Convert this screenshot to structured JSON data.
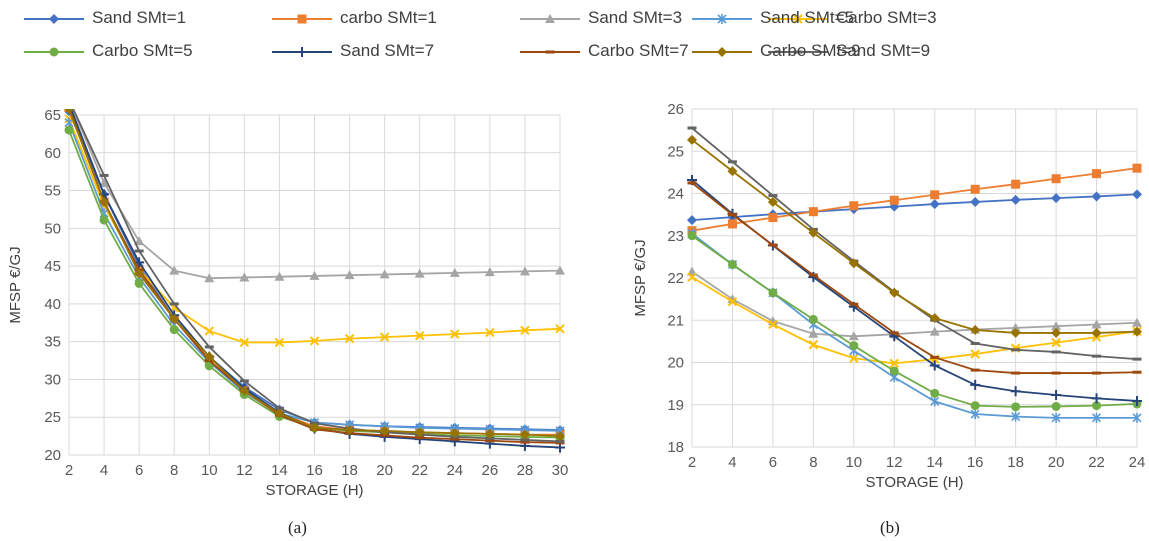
{
  "legend": [
    {
      "name": "Sand SMt=1",
      "color": "#4472C4",
      "marker": "diamond"
    },
    {
      "name": "carbo SMt=1",
      "color": "#ED7D31",
      "marker": "square"
    },
    {
      "name": "Sand SMt=3",
      "color": "#A5A5A5",
      "marker": "triangle"
    },
    {
      "name": "Carbo SMt=3",
      "color": "#FFC000",
      "marker": "x"
    },
    {
      "name": "Sand SMt=5",
      "color": "#5B9BD5",
      "marker": "star"
    },
    {
      "name": "Carbo SMt=5",
      "color": "#70AD47",
      "marker": "circle"
    },
    {
      "name": "Sand SMt=7",
      "color": "#264478",
      "marker": "plus"
    },
    {
      "name": "Carbo SMt=7",
      "color": "#9E480E",
      "marker": "dash"
    },
    {
      "name": "Sand SMt=9",
      "color": "#636363",
      "marker": "dash"
    },
    {
      "name": "Carbo SMt=9",
      "color": "#997300",
      "marker": "diamond"
    }
  ],
  "chart_data": [
    {
      "type": "line",
      "caption": "(a)",
      "xlabel": "STORAGE (H)",
      "ylabel": "MFSP €/GJ",
      "x": [
        2,
        4,
        6,
        8,
        10,
        12,
        14,
        16,
        18,
        20,
        22,
        24,
        26,
        28,
        30
      ],
      "xlim": [
        2,
        30
      ],
      "ylim": [
        20,
        65
      ],
      "yticks": [
        20,
        25,
        30,
        35,
        40,
        45,
        50,
        55,
        60,
        65
      ],
      "grid": true,
      "series": [
        {
          "name": "Sand SMt=1",
          "values": [
            65.5,
            54.5,
            45.0,
            38.0,
            33.0,
            29.0,
            26.0,
            24.3,
            24.0,
            23.8,
            23.7,
            23.6,
            23.5,
            23.4,
            23.3
          ]
        },
        {
          "name": "carbo SMt=1",
          "values": [
            66.0,
            53.5,
            44.5,
            38.0,
            32.5,
            28.5,
            25.5,
            23.8,
            23.3,
            23.1,
            23.0,
            22.9,
            22.8,
            22.7,
            22.7
          ]
        },
        {
          "name": "Sand SMt=3",
          "values": [
            67.0,
            56.0,
            48.3,
            44.4,
            43.4,
            43.5,
            43.6,
            43.7,
            43.8,
            43.9,
            44.0,
            44.1,
            44.2,
            44.3,
            44.4
          ]
        },
        {
          "name": "Carbo SMt=3",
          "values": [
            64.5,
            53.0,
            44.5,
            39.5,
            36.4,
            34.9,
            34.9,
            35.1,
            35.4,
            35.6,
            35.8,
            36.0,
            36.2,
            36.5,
            36.7
          ]
        },
        {
          "name": "Sand SMt=5",
          "values": [
            64.0,
            52.0,
            43.5,
            37.2,
            32.3,
            28.3,
            25.5,
            24.3,
            24.0,
            23.8,
            23.6,
            23.5,
            23.4,
            23.3,
            23.2
          ]
        },
        {
          "name": "Carbo SMt=5",
          "values": [
            63.0,
            51.1,
            42.7,
            36.6,
            31.8,
            28.0,
            25.1,
            23.6,
            23.2,
            23.0,
            22.8,
            22.6,
            22.5,
            22.4,
            22.3
          ]
        },
        {
          "name": "Sand SMt=7",
          "values": [
            66.5,
            54.5,
            45.5,
            38.5,
            33.0,
            28.8,
            25.6,
            23.5,
            22.8,
            22.4,
            22.1,
            21.8,
            21.5,
            21.2,
            21.0
          ]
        },
        {
          "name": "Carbo SMt=7",
          "values": [
            66.0,
            53.5,
            44.5,
            38.0,
            32.5,
            28.5,
            25.3,
            23.4,
            22.9,
            22.6,
            22.3,
            22.1,
            21.9,
            21.7,
            21.6
          ]
        },
        {
          "name": "Sand SMt=9",
          "values": [
            67.0,
            57.0,
            47.0,
            40.0,
            34.3,
            29.8,
            26.2,
            24.2,
            23.5,
            23.0,
            22.7,
            22.4,
            22.2,
            22.0,
            21.8
          ]
        },
        {
          "name": "Carbo SMt=9",
          "values": [
            65.8,
            53.5,
            44.0,
            38.0,
            33.0,
            28.5,
            25.5,
            23.6,
            23.3,
            23.2,
            23.0,
            22.9,
            22.8,
            22.7,
            22.5
          ]
        }
      ]
    },
    {
      "type": "line",
      "caption": "(b)",
      "xlabel": "STORAGE (H)",
      "ylabel": "MFSP €/GJ",
      "x": [
        2,
        4,
        6,
        8,
        10,
        12,
        14,
        16,
        18,
        20,
        22,
        24
      ],
      "xlim": [
        2,
        24
      ],
      "ylim": [
        18,
        26
      ],
      "yticks": [
        18,
        19,
        20,
        21,
        22,
        23,
        24,
        25,
        26
      ],
      "grid": true,
      "series": [
        {
          "name": "Sand SMt=1",
          "values": [
            23.37,
            23.44,
            23.51,
            23.57,
            23.63,
            23.69,
            23.75,
            23.8,
            23.85,
            23.89,
            23.93,
            23.98
          ]
        },
        {
          "name": "carbo SMt=1",
          "values": [
            23.12,
            23.28,
            23.43,
            23.57,
            23.71,
            23.84,
            23.97,
            24.1,
            24.22,
            24.35,
            24.47,
            24.6
          ]
        },
        {
          "name": "Sand SMt=3",
          "values": [
            22.15,
            21.5,
            20.98,
            20.68,
            20.62,
            20.67,
            20.73,
            20.78,
            20.82,
            20.86,
            20.9,
            20.94
          ]
        },
        {
          "name": "Carbo SMt=3",
          "values": [
            22.02,
            21.44,
            20.9,
            20.42,
            20.1,
            19.98,
            20.08,
            20.2,
            20.34,
            20.47,
            20.6,
            20.74
          ]
        },
        {
          "name": "Sand SMt=5",
          "values": [
            23.05,
            22.32,
            21.65,
            20.9,
            20.28,
            19.65,
            19.08,
            18.78,
            18.72,
            18.69,
            18.69,
            18.69
          ]
        },
        {
          "name": "Carbo SMt=5",
          "values": [
            23.0,
            22.32,
            21.65,
            21.02,
            20.4,
            19.8,
            19.27,
            18.98,
            18.95,
            18.96,
            18.98,
            19.02
          ]
        },
        {
          "name": "Sand SMt=7",
          "values": [
            24.32,
            23.52,
            22.77,
            22.02,
            21.32,
            20.62,
            19.93,
            19.47,
            19.32,
            19.23,
            19.15,
            19.09
          ]
        },
        {
          "name": "Carbo SMt=7",
          "values": [
            24.25,
            23.5,
            22.78,
            22.07,
            21.38,
            20.7,
            20.12,
            19.82,
            19.75,
            19.75,
            19.75,
            19.77
          ]
        },
        {
          "name": "Sand SMt=9",
          "values": [
            25.55,
            24.75,
            23.95,
            23.15,
            22.4,
            21.67,
            21.0,
            20.45,
            20.3,
            20.25,
            20.15,
            20.08
          ]
        },
        {
          "name": "Carbo SMt=9",
          "values": [
            25.27,
            24.53,
            23.8,
            23.07,
            22.35,
            21.65,
            21.05,
            20.77,
            20.7,
            20.7,
            20.7,
            20.73
          ]
        }
      ]
    }
  ]
}
